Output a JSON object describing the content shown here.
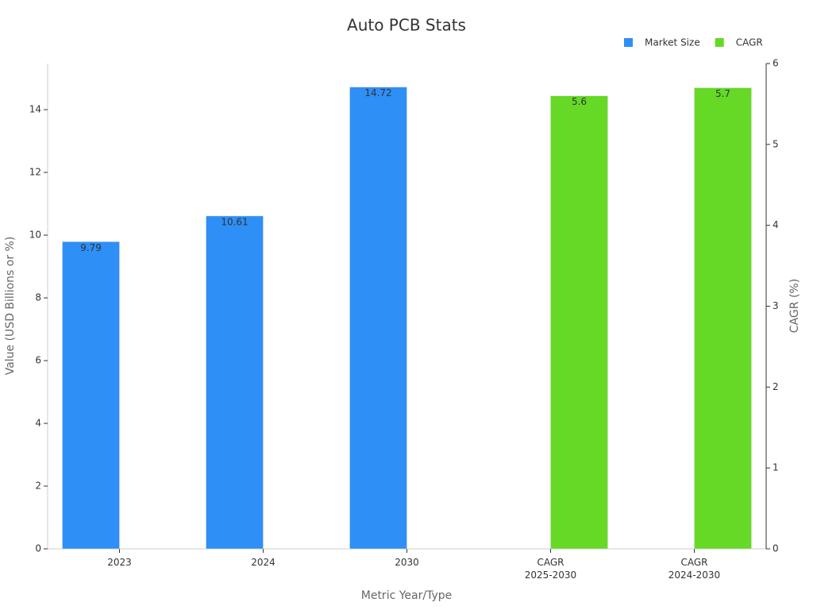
{
  "chart_data": {
    "type": "bar",
    "title": "Auto PCB Stats",
    "xlabel": "Metric Year/Type",
    "ylabel": "Value (USD Billions or %)",
    "y2label": "CAGR (%)",
    "categories": [
      "2023",
      "2024",
      "2030",
      "CAGR\n2025-2030",
      "CAGR\n2024-2030"
    ],
    "series": [
      {
        "name": "Market Size",
        "color": "#2e8ff7",
        "values": [
          9.79,
          10.61,
          14.72,
          null,
          null
        ]
      },
      {
        "name": "CAGR",
        "color": "#66d926",
        "axis": "y2",
        "values": [
          null,
          null,
          null,
          5.6,
          5.7
        ]
      }
    ],
    "ylim": [
      0,
      15.47
    ],
    "yticks": [
      0,
      2,
      4,
      6,
      8,
      10,
      12,
      14
    ],
    "y2lim": [
      0,
      6
    ],
    "y2ticks": [
      0,
      1,
      2,
      3,
      4,
      5,
      6
    ],
    "grid": false,
    "legend": "upper right"
  }
}
